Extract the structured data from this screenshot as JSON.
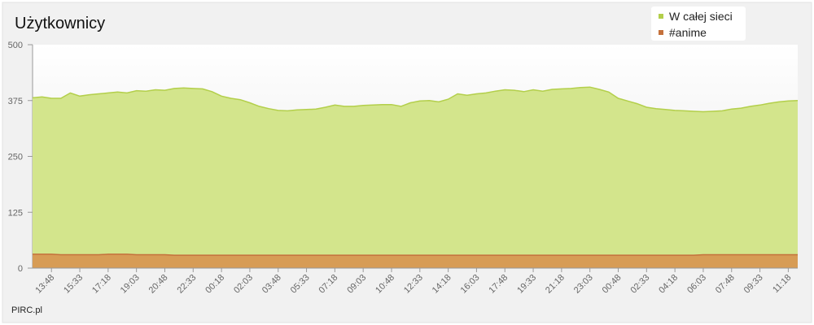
{
  "chart_data": {
    "type": "area",
    "title": "Użytkownicy",
    "footer": "PIRC.pl",
    "categories": [
      null,
      null,
      "13:48",
      null,
      null,
      "15:33",
      null,
      null,
      "17:18",
      null,
      null,
      "19:03",
      null,
      null,
      "20:48",
      null,
      null,
      "22:33",
      null,
      null,
      "00:18",
      null,
      null,
      "02:03",
      null,
      null,
      "03:48",
      null,
      null,
      "05:33",
      null,
      null,
      "07:18",
      null,
      null,
      "09:03",
      null,
      null,
      "10:48",
      null,
      null,
      "12:33",
      null,
      null,
      "14:18",
      null,
      null,
      "16:03",
      null,
      null,
      "17:48",
      null,
      null,
      "19:33",
      null,
      null,
      "21:18",
      null,
      null,
      "23:03",
      null,
      null,
      "00:48",
      null,
      null,
      "02:33",
      null,
      null,
      "04:18",
      null,
      null,
      "06:03",
      null,
      null,
      "07:48",
      null,
      null,
      "09:33",
      null,
      null,
      "11:18",
      null
    ],
    "series": [
      {
        "name": "W całej sieci",
        "color": "#b3cf4a",
        "fill": "#d3e58c",
        "values": [
          381,
          383,
          380,
          380,
          392,
          385,
          388,
          390,
          392,
          394,
          392,
          397,
          396,
          399,
          398,
          402,
          403,
          402,
          401,
          395,
          385,
          380,
          377,
          370,
          362,
          357,
          353,
          352,
          354,
          355,
          356,
          360,
          365,
          362,
          362,
          364,
          365,
          366,
          366,
          362,
          370,
          374,
          375,
          372,
          378,
          390,
          387,
          390,
          392,
          396,
          399,
          398,
          395,
          399,
          396,
          400,
          401,
          402,
          404,
          405,
          400,
          394,
          380,
          374,
          368,
          360,
          357,
          355,
          353,
          352,
          351,
          350,
          351,
          352,
          356,
          358,
          362,
          365,
          369,
          372,
          374,
          375
        ]
      },
      {
        "name": "#anime",
        "color": "#c4713c",
        "fill": "#d79c55",
        "values": [
          31,
          31,
          31,
          30,
          30,
          30,
          30,
          30,
          31,
          31,
          31,
          30,
          30,
          30,
          30,
          29,
          29,
          29,
          29,
          29,
          29,
          29,
          29,
          29,
          29,
          29,
          29,
          29,
          29,
          29,
          29,
          29,
          29,
          29,
          29,
          29,
          29,
          29,
          29,
          29,
          29,
          29,
          29,
          29,
          29,
          29,
          29,
          29,
          29,
          29,
          29,
          29,
          29,
          29,
          29,
          29,
          29,
          29,
          29,
          29,
          29,
          29,
          29,
          29,
          29,
          29,
          29,
          29,
          29,
          29,
          29,
          30,
          30,
          30,
          30,
          30,
          30,
          30,
          30,
          30,
          30,
          30
        ]
      }
    ],
    "ylim": [
      0,
      500
    ],
    "yticks": [
      0,
      125,
      250,
      375,
      500
    ],
    "legend": "top-right"
  }
}
